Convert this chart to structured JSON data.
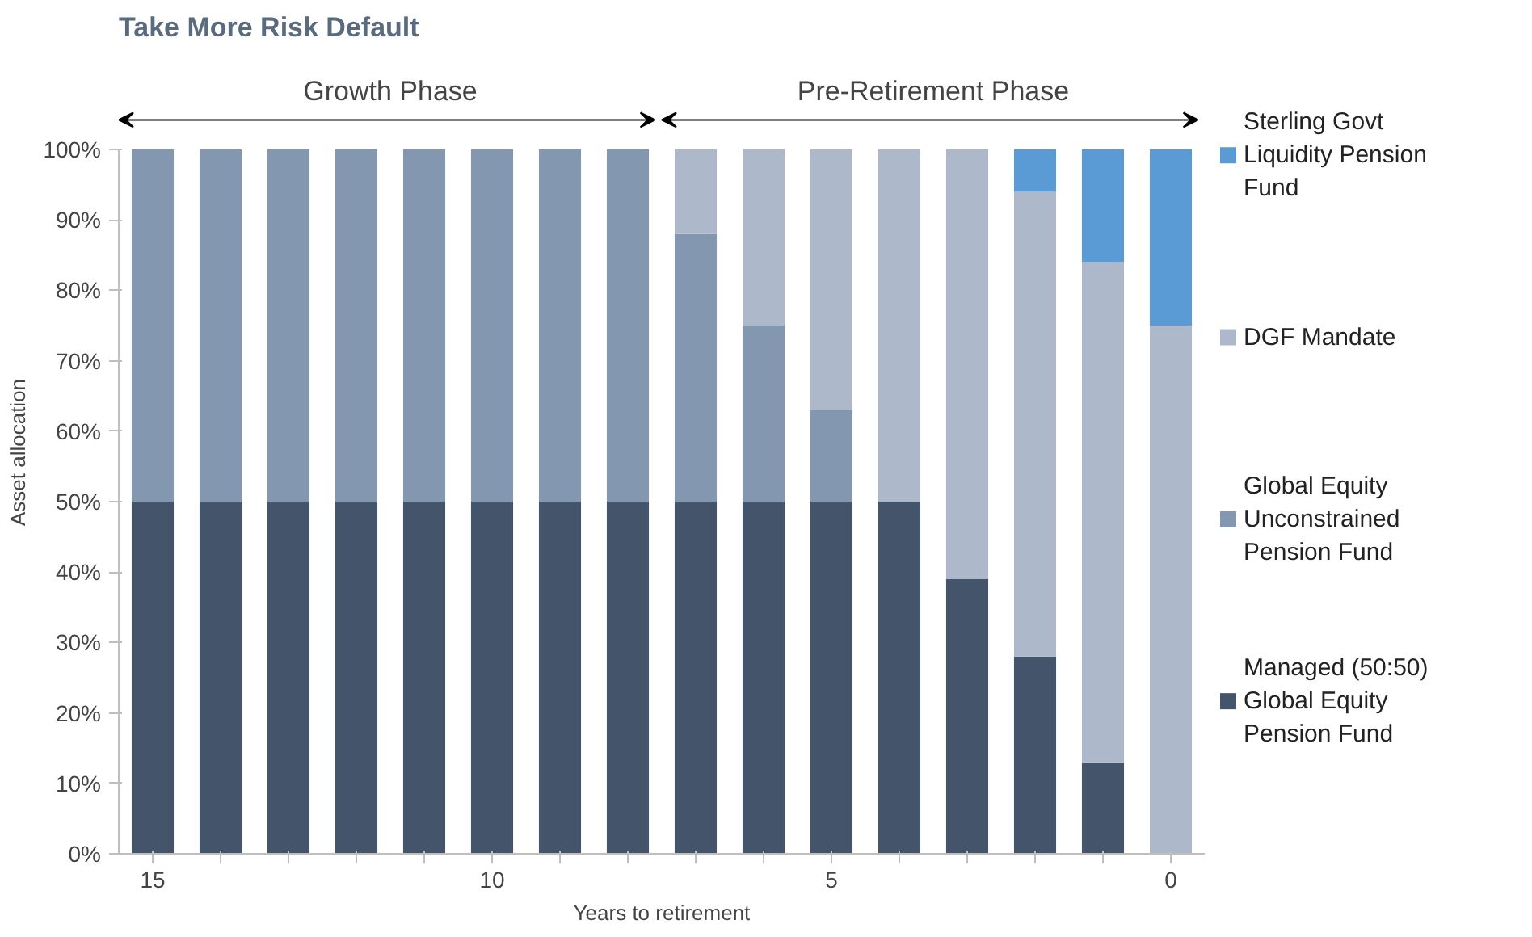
{
  "chart_data": {
    "type": "bar",
    "stacked": true,
    "title": "Take More Risk Default",
    "xlabel": "Years to retirement",
    "ylabel": "Asset allocation",
    "categories": [
      "15",
      null,
      null,
      null,
      null,
      "10",
      null,
      null,
      null,
      null,
      "5",
      null,
      null,
      null,
      null,
      "0"
    ],
    "series": [
      {
        "name": "Managed (50:50) Global Equity Pension Fund",
        "color": "#44546a",
        "values": [
          50,
          50,
          50,
          50,
          50,
          50,
          50,
          50,
          50,
          50,
          50,
          50,
          39,
          28,
          13,
          0
        ]
      },
      {
        "name": "Global Equity Unconstrained Pension Fund",
        "color": "#8497b0",
        "values": [
          50,
          50,
          50,
          50,
          50,
          50,
          50,
          50,
          38,
          25,
          13,
          0,
          0,
          0,
          0,
          0
        ]
      },
      {
        "name": "DGF Mandate",
        "color": "#adb9ca",
        "values": [
          0,
          0,
          0,
          0,
          0,
          0,
          0,
          0,
          12,
          25,
          37,
          50,
          61,
          66,
          71,
          75
        ]
      },
      {
        "name": "Sterling Govt Liquidity Pension Fund",
        "color": "#5b9bd5",
        "values": [
          0,
          0,
          0,
          0,
          0,
          0,
          0,
          0,
          0,
          0,
          0,
          0,
          0,
          6,
          16,
          25
        ]
      }
    ],
    "ylim": [
      0,
      100
    ],
    "yticks": [
      {
        "value": 0,
        "label": "0%"
      },
      {
        "value": 10,
        "label": "10%"
      },
      {
        "value": 20,
        "label": "20%"
      },
      {
        "value": 30,
        "label": "30%"
      },
      {
        "value": 40,
        "label": "40%"
      },
      {
        "value": 50,
        "label": "50%"
      },
      {
        "value": 60,
        "label": "60%"
      },
      {
        "value": 70,
        "label": "70%"
      },
      {
        "value": 80,
        "label": "80%"
      },
      {
        "value": 90,
        "label": "90%"
      },
      {
        "value": 100,
        "label": "100%"
      }
    ],
    "grid": false,
    "legend": "right",
    "annotations": [
      "Growth Phase",
      "Pre-Retirement Phase"
    ]
  }
}
